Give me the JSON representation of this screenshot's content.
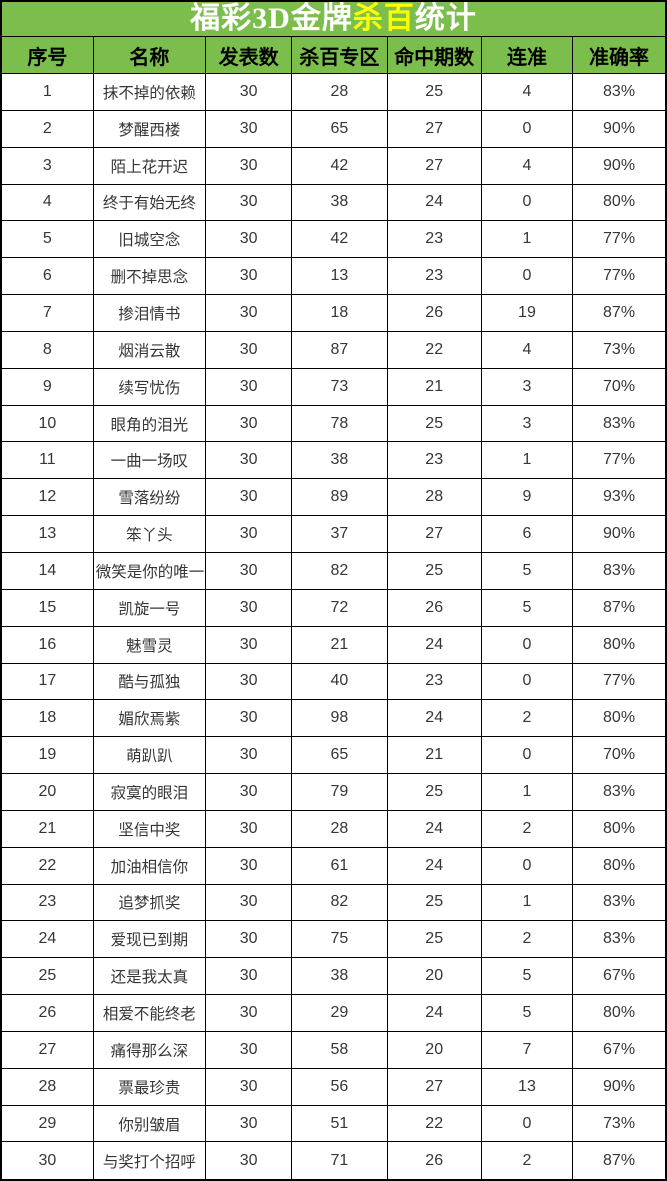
{
  "title": {
    "prefix": "福彩3D金牌",
    "highlight": "杀百",
    "suffix": "统计",
    "full": "福彩3D金牌杀百统计"
  },
  "colors": {
    "header_green": "#7cbe4c",
    "highlight_yellow": "#ffff00",
    "title_text": "#ffffff",
    "header_text": "#000000",
    "body_text": "#363636",
    "border": "#000000",
    "row_background": "#ffffff"
  },
  "chart_data": {
    "type": "table",
    "title": "福彩3D金牌杀百统计",
    "columns": [
      "序号",
      "名称",
      "发表数",
      "杀百专区",
      "命中期数",
      "连准",
      "准确率"
    ],
    "column_keys": [
      "serial",
      "name",
      "published",
      "kill_zone",
      "hits",
      "streak",
      "accuracy"
    ],
    "rows": [
      [
        1,
        "抹不掉的依赖",
        30,
        28,
        25,
        4,
        "83%"
      ],
      [
        2,
        "梦醒西楼",
        30,
        65,
        27,
        0,
        "90%"
      ],
      [
        3,
        "陌上花开迟",
        30,
        42,
        27,
        4,
        "90%"
      ],
      [
        4,
        "终于有始无终",
        30,
        38,
        24,
        0,
        "80%"
      ],
      [
        5,
        "旧城空念",
        30,
        42,
        23,
        1,
        "77%"
      ],
      [
        6,
        "删不掉思念",
        30,
        13,
        23,
        0,
        "77%"
      ],
      [
        7,
        "掺泪情书",
        30,
        18,
        26,
        19,
        "87%"
      ],
      [
        8,
        "烟消云散",
        30,
        87,
        22,
        4,
        "73%"
      ],
      [
        9,
        "续写忧伤",
        30,
        73,
        21,
        3,
        "70%"
      ],
      [
        10,
        "眼角的泪光",
        30,
        78,
        25,
        3,
        "83%"
      ],
      [
        11,
        "一曲一场叹",
        30,
        38,
        23,
        1,
        "77%"
      ],
      [
        12,
        "雪落纷纷",
        30,
        89,
        28,
        9,
        "93%"
      ],
      [
        13,
        "笨丫头",
        30,
        37,
        27,
        6,
        "90%"
      ],
      [
        14,
        "微笑是你的唯一",
        30,
        82,
        25,
        5,
        "83%"
      ],
      [
        15,
        "凯旋一号",
        30,
        72,
        26,
        5,
        "87%"
      ],
      [
        16,
        "魅雪灵",
        30,
        21,
        24,
        0,
        "80%"
      ],
      [
        17,
        "酷与孤独",
        30,
        40,
        23,
        0,
        "77%"
      ],
      [
        18,
        "媚欣焉紫",
        30,
        98,
        24,
        2,
        "80%"
      ],
      [
        19,
        "萌趴趴",
        30,
        65,
        21,
        0,
        "70%"
      ],
      [
        20,
        "寂寞的眼泪",
        30,
        79,
        25,
        1,
        "83%"
      ],
      [
        21,
        "坚信中奖",
        30,
        28,
        24,
        2,
        "80%"
      ],
      [
        22,
        "加油相信你",
        30,
        61,
        24,
        0,
        "80%"
      ],
      [
        23,
        "追梦抓奖",
        30,
        82,
        25,
        1,
        "83%"
      ],
      [
        24,
        "爱现已到期",
        30,
        75,
        25,
        2,
        "83%"
      ],
      [
        25,
        "还是我太真",
        30,
        38,
        20,
        5,
        "67%"
      ],
      [
        26,
        "相爱不能终老",
        30,
        29,
        24,
        5,
        "80%"
      ],
      [
        27,
        "痛得那么深",
        30,
        58,
        20,
        7,
        "67%"
      ],
      [
        28,
        "票最珍贵",
        30,
        56,
        27,
        13,
        "90%"
      ],
      [
        29,
        "你别皱眉",
        30,
        51,
        22,
        0,
        "73%"
      ],
      [
        30,
        "与奖打个招呼",
        30,
        71,
        26,
        2,
        "87%"
      ]
    ]
  }
}
